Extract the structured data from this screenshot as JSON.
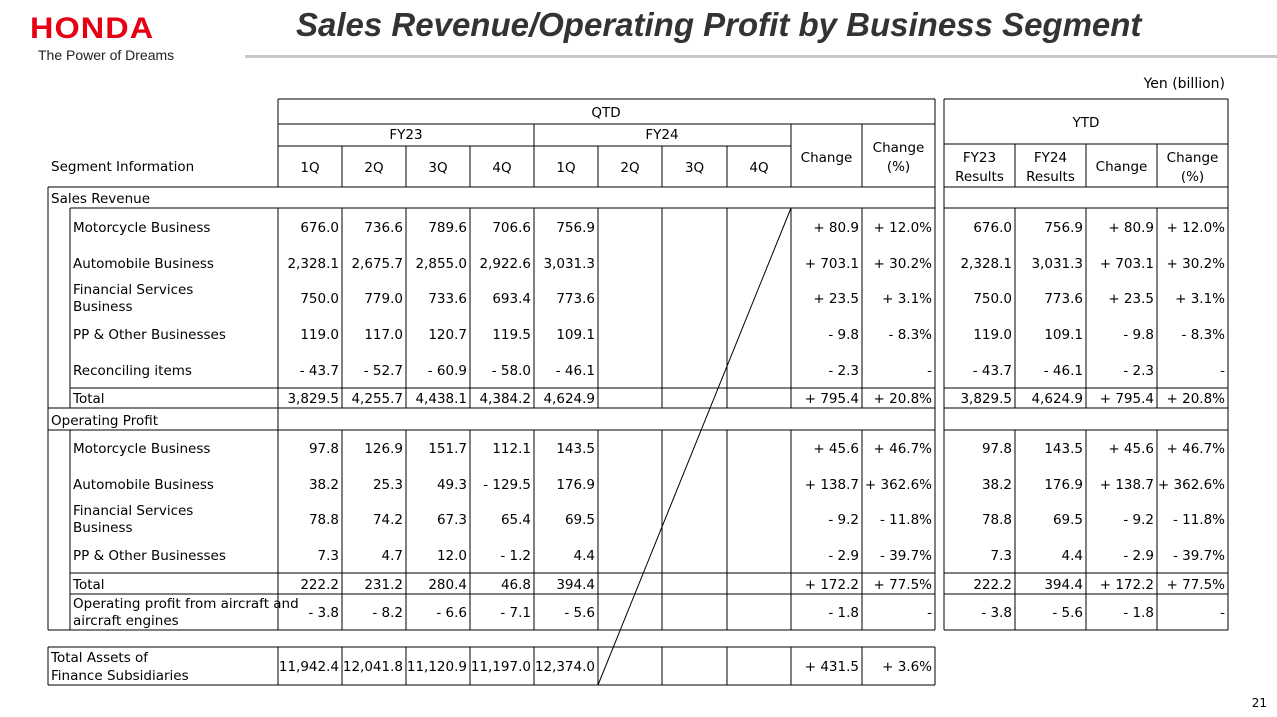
{
  "header": {
    "logo": "HONDA",
    "tagline": "The Power of Dreams",
    "title": "Sales Revenue/Operating Profit by Business Segment",
    "unit": "Yen (billion)",
    "page_number": "21"
  },
  "table": {
    "qtd_label": "QTD",
    "ytd_label": "YTD",
    "fy23_label": "FY23",
    "fy24_label": "FY24",
    "segment_info_label": "Segment Information",
    "quarters": [
      "1Q",
      "2Q",
      "3Q",
      "4Q",
      "1Q",
      "2Q",
      "3Q",
      "4Q"
    ],
    "change_label": "Change",
    "change_pct_label": [
      "Change",
      "(%)"
    ],
    "ytd_headers": [
      [
        "FY23",
        "Results"
      ],
      [
        "FY24",
        "Results"
      ],
      [
        "Change"
      ],
      [
        "Change",
        "(%)"
      ]
    ],
    "section_sales": "Sales Revenue",
    "section_op": "Operating Profit",
    "sales_rows": [
      {
        "label": [
          "Motorcycle Business"
        ],
        "q": [
          "676.0",
          "736.6",
          "789.6",
          "706.6",
          "756.9",
          "",
          "",
          ""
        ],
        "change": "+ 80.9",
        "pct": "+ 12.0%",
        "ytd": [
          "676.0",
          "756.9",
          "+ 80.9",
          "+ 12.0%"
        ]
      },
      {
        "label": [
          "Automobile Business"
        ],
        "q": [
          "2,328.1",
          "2,675.7",
          "2,855.0",
          "2,922.6",
          "3,031.3",
          "",
          "",
          ""
        ],
        "change": "+ 703.1",
        "pct": "+ 30.2%",
        "ytd": [
          "2,328.1",
          "3,031.3",
          "+ 703.1",
          "+ 30.2%"
        ]
      },
      {
        "label": [
          "Financial Services",
          "Business"
        ],
        "q": [
          "750.0",
          "779.0",
          "733.6",
          "693.4",
          "773.6",
          "",
          "",
          ""
        ],
        "change": "+ 23.5",
        "pct": "+ 3.1%",
        "ytd": [
          "750.0",
          "773.6",
          "+ 23.5",
          "+ 3.1%"
        ]
      },
      {
        "label": [
          "PP & Other Businesses"
        ],
        "q": [
          "119.0",
          "117.0",
          "120.7",
          "119.5",
          "109.1",
          "",
          "",
          ""
        ],
        "change": "- 9.8",
        "pct": "- 8.3%",
        "ytd": [
          "119.0",
          "109.1",
          "- 9.8",
          "- 8.3%"
        ]
      },
      {
        "label": [
          "Reconciling items"
        ],
        "q": [
          "- 43.7",
          "- 52.7",
          "- 60.9",
          "- 58.0",
          "- 46.1",
          "",
          "",
          ""
        ],
        "change": "- 2.3",
        "pct": "-",
        "ytd": [
          "- 43.7",
          "- 46.1",
          "- 2.3",
          "-"
        ]
      },
      {
        "label": [
          "Total"
        ],
        "q": [
          "3,829.5",
          "4,255.7",
          "4,438.1",
          "4,384.2",
          "4,624.9",
          "",
          "",
          ""
        ],
        "change": "+ 795.4",
        "pct": "+ 20.8%",
        "ytd": [
          "3,829.5",
          "4,624.9",
          "+ 795.4",
          "+ 20.8%"
        ]
      }
    ],
    "op_rows": [
      {
        "label": [
          "Motorcycle Business"
        ],
        "q": [
          "97.8",
          "126.9",
          "151.7",
          "112.1",
          "143.5",
          "",
          "",
          ""
        ],
        "change": "+ 45.6",
        "pct": "+ 46.7%",
        "ytd": [
          "97.8",
          "143.5",
          "+ 45.6",
          "+ 46.7%"
        ]
      },
      {
        "label": [
          "Automobile Business"
        ],
        "q": [
          "38.2",
          "25.3",
          "49.3",
          "- 129.5",
          "176.9",
          "",
          "",
          ""
        ],
        "change": "+ 138.7",
        "pct": "+ 362.6%",
        "ytd": [
          "38.2",
          "176.9",
          "+ 138.7",
          "+ 362.6%"
        ]
      },
      {
        "label": [
          "Financial Services",
          "Business"
        ],
        "q": [
          "78.8",
          "74.2",
          "67.3",
          "65.4",
          "69.5",
          "",
          "",
          ""
        ],
        "change": "- 9.2",
        "pct": "- 11.8%",
        "ytd": [
          "78.8",
          "69.5",
          "- 9.2",
          "- 11.8%"
        ]
      },
      {
        "label": [
          "PP & Other Businesses"
        ],
        "q": [
          "7.3",
          "4.7",
          "12.0",
          "- 1.2",
          "4.4",
          "",
          "",
          ""
        ],
        "change": "- 2.9",
        "pct": "- 39.7%",
        "ytd": [
          "7.3",
          "4.4",
          "- 2.9",
          "- 39.7%"
        ]
      },
      {
        "label": [
          "Total"
        ],
        "q": [
          "222.2",
          "231.2",
          "280.4",
          "46.8",
          "394.4",
          "",
          "",
          ""
        ],
        "change": "+ 172.2",
        "pct": "+ 77.5%",
        "ytd": [
          "222.2",
          "394.4",
          "+ 172.2",
          "+ 77.5%"
        ]
      },
      {
        "label": [
          "Operating profit from aircraft and",
          "aircraft engines"
        ],
        "q": [
          "- 3.8",
          "- 8.2",
          "- 6.6",
          "- 7.1",
          "- 5.6",
          "",
          "",
          ""
        ],
        "change": "- 1.8",
        "pct": "-",
        "ytd": [
          "- 3.8",
          "- 5.6",
          "- 1.8",
          "-"
        ]
      }
    ],
    "assets_row": {
      "label": [
        "Total Assets of",
        "Finance Subsidiaries"
      ],
      "q": [
        "11,942.4",
        "12,041.8",
        "11,120.9",
        "11,197.0",
        "12,374.0",
        "",
        "",
        ""
      ],
      "change": "+ 431.5",
      "pct": "+ 3.6%"
    }
  },
  "colors": {
    "brand": "#e60012",
    "title": "#333333",
    "rule": "#c8c8c8"
  }
}
